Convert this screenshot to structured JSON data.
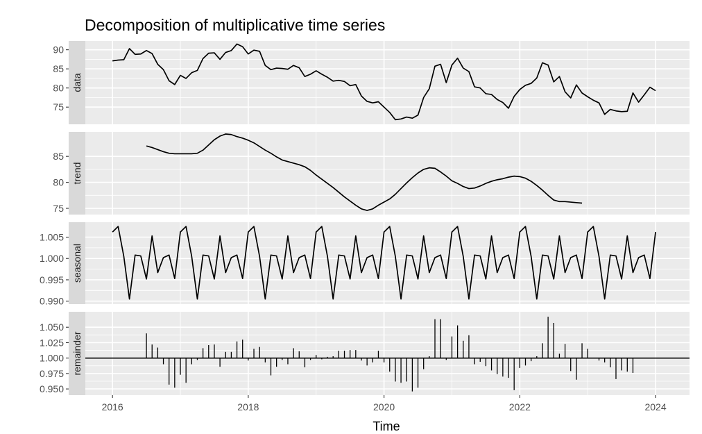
{
  "chart_data": {
    "type": "line",
    "title": "Decomposition of multiplicative time series",
    "xlabel": "Time",
    "xlim": [
      2015.6,
      2024.5
    ],
    "x_ticks": [
      2016,
      2018,
      2020,
      2022,
      2024
    ],
    "x_tick_labels": [
      "2016",
      "2018",
      "2020",
      "2022",
      "2024"
    ],
    "colors": {
      "panel_bg": "#ebebeb",
      "strip_bg": "#d9d9d9",
      "grid": "#ffffff",
      "line": "#000000"
    },
    "grid": true,
    "panels": [
      {
        "name": "data",
        "kind": "line",
        "ylim": [
          70.5,
          92.3
        ],
        "y_ticks": [
          75,
          80,
          85,
          90
        ],
        "y_tick_labels": [
          "75",
          "80",
          "85",
          "90"
        ],
        "x_start": 2016.0,
        "x_step": 0.083333,
        "values": [
          87.1,
          87.3,
          87.4,
          90.3,
          88.8,
          88.9,
          89.8,
          89.0,
          86.2,
          84.8,
          81.9,
          80.9,
          83.3,
          82.5,
          84.0,
          84.6,
          87.7,
          89.1,
          89.2,
          87.5,
          89.3,
          89.8,
          91.5,
          90.8,
          88.9,
          89.9,
          89.6,
          85.9,
          84.8,
          85.2,
          85.1,
          84.9,
          85.9,
          85.3,
          83.0,
          83.6,
          84.5,
          83.6,
          82.8,
          81.8,
          82.0,
          81.7,
          80.6,
          80.9,
          77.9,
          76.5,
          76.1,
          76.4,
          75.0,
          73.6,
          71.7,
          71.9,
          72.4,
          72.1,
          72.9,
          77.5,
          79.8,
          85.7,
          86.2,
          81.4,
          86.0,
          87.8,
          85.2,
          84.3,
          80.3,
          80.0,
          78.5,
          78.3,
          77.0,
          76.2,
          74.7,
          77.8,
          79.6,
          80.7,
          81.2,
          82.6,
          86.6,
          86.0,
          81.6,
          83.0,
          79.0,
          77.4,
          80.8,
          78.7,
          77.7,
          76.8,
          76.1,
          73.1,
          74.4,
          74.0,
          73.8,
          73.9,
          78.7,
          76.3,
          78.2,
          80.2,
          79.3
        ]
      },
      {
        "name": "trend",
        "kind": "line",
        "ylim": [
          73.8,
          89.7
        ],
        "y_ticks": [
          75,
          80,
          85
        ],
        "y_tick_labels": [
          "75",
          "80",
          "85"
        ],
        "x_start": 2016.5,
        "x_step": 0.083333,
        "values": [
          87.0,
          86.7,
          86.3,
          85.9,
          85.6,
          85.5,
          85.5,
          85.5,
          85.5,
          85.6,
          86.2,
          87.2,
          88.2,
          88.9,
          89.3,
          89.2,
          88.8,
          88.5,
          88.1,
          87.6,
          86.9,
          86.2,
          85.6,
          84.9,
          84.3,
          84.0,
          83.7,
          83.4,
          83.0,
          82.3,
          81.4,
          80.6,
          79.8,
          79.0,
          78.1,
          77.2,
          76.4,
          75.6,
          74.9,
          74.6,
          74.9,
          75.6,
          76.2,
          76.8,
          77.7,
          78.8,
          79.9,
          80.9,
          81.8,
          82.5,
          82.8,
          82.7,
          82.0,
          81.2,
          80.3,
          79.8,
          79.2,
          78.8,
          78.9,
          79.3,
          79.8,
          80.2,
          80.5,
          80.7,
          81.0,
          81.2,
          81.1,
          80.8,
          80.2,
          79.4,
          78.5,
          77.5,
          76.6,
          76.3,
          76.3,
          76.2,
          76.1,
          76.0
        ]
      },
      {
        "name": "seasonal",
        "kind": "line",
        "ylim": [
          0.9893,
          1.0085
        ],
        "y_ticks": [
          0.99,
          0.995,
          1.0,
          1.005
        ],
        "y_tick_labels": [
          "0.990",
          "0.995",
          "1.000",
          "1.005"
        ],
        "x_start": 2016.0,
        "x_step": 0.083333,
        "pattern": [
          1.0062,
          1.0075,
          1.0005,
          0.9905,
          1.0008,
          1.0006,
          0.9952,
          1.0053,
          0.9967,
          1.0002,
          1.0008,
          0.9953
        ],
        "cycles": 8,
        "end_value": 1.0062
      },
      {
        "name": "remainder",
        "kind": "bar",
        "baseline": 1.0,
        "ylim": [
          0.94,
          1.075
        ],
        "y_ticks": [
          0.95,
          0.975,
          1.0,
          1.025,
          1.05
        ],
        "y_tick_labels": [
          "0.950",
          "0.975",
          "1.000",
          "1.025",
          "1.050"
        ],
        "x_start": 2016.5,
        "x_step": 0.083333,
        "values": [
          1.04,
          1.022,
          1.017,
          0.99,
          0.957,
          0.952,
          0.973,
          0.96,
          0.99,
          0.997,
          1.016,
          1.021,
          1.022,
          0.986,
          1.01,
          1.01,
          1.027,
          1.03,
          0.996,
          1.015,
          1.018,
          0.993,
          0.972,
          0.986,
          0.997,
          0.99,
          1.016,
          1.011,
          0.985,
          0.997,
          1.005,
          0.998,
          1.002,
          1.003,
          1.012,
          1.012,
          1.013,
          1.013,
          0.996,
          0.988,
          0.993,
          1.012,
          0.993,
          0.978,
          0.962,
          0.96,
          0.962,
          0.946,
          0.952,
          0.982,
          1.003,
          1.063,
          1.063,
          0.997,
          1.035,
          1.053,
          1.028,
          1.037,
          0.99,
          0.994,
          0.987,
          0.98,
          0.974,
          0.97,
          0.968,
          0.948,
          0.984,
          0.988,
          0.995,
          1.003,
          1.024,
          1.067,
          1.057,
          1.007,
          1.023,
          0.979,
          0.965,
          1.024,
          1.015,
          1.0,
          0.996,
          0.993,
          0.985,
          0.966,
          0.98,
          0.978,
          0.976
        ]
      }
    ]
  }
}
